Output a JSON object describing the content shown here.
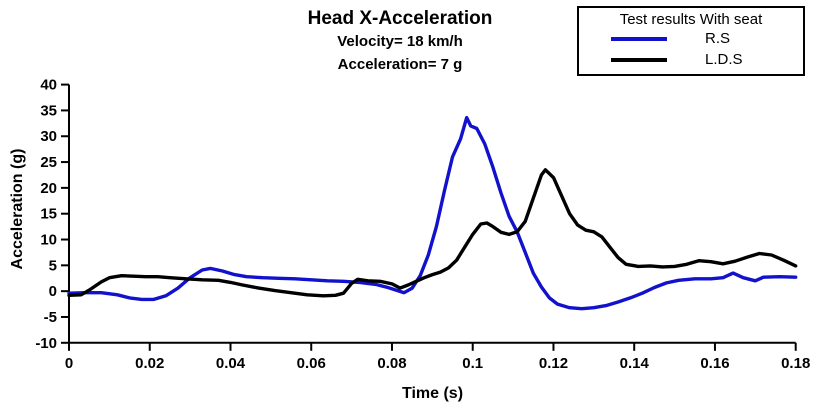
{
  "header": {
    "title": "Head X-Acceleration",
    "subtitle1": "Velocity= 18 km/h",
    "subtitle2": "Acceleration= 7 g"
  },
  "legend": {
    "title": "Test results With seat",
    "items": [
      {
        "label": "R.S",
        "color": "#1212cd"
      },
      {
        "label": "L.D.S",
        "color": "#000000"
      }
    ]
  },
  "chart_data": {
    "type": "line",
    "title": "Head X-Acceleration",
    "subtitles": [
      "Velocity= 18 km/h",
      "Acceleration= 7 g"
    ],
    "xlabel": "Time (s)",
    "ylabel": "Acceleration (g)",
    "xlim": [
      0,
      0.18
    ],
    "ylim": [
      -10,
      40
    ],
    "xticks": [
      0,
      0.02,
      0.04,
      0.06,
      0.08,
      0.1,
      0.12,
      0.14,
      0.16,
      0.18
    ],
    "xtick_labels": [
      "0",
      "0.02",
      "0.04",
      "0.06",
      "0.08",
      "0.1",
      "0.12",
      "0.14",
      "0.16",
      "0.18"
    ],
    "yticks": [
      -10,
      -5,
      0,
      5,
      10,
      15,
      20,
      25,
      30,
      35,
      40
    ],
    "ytick_labels": [
      "-10",
      "-5",
      "0",
      "5",
      "10",
      "15",
      "20",
      "25",
      "30",
      "35",
      "40"
    ],
    "grid": false,
    "legend_position": "top-right",
    "legend_title": "Test results With seat",
    "axis_color": "#000000",
    "line_width": 3.4,
    "series": [
      {
        "name": "R.S",
        "color": "#1212cd",
        "points": [
          [
            0,
            -0.4
          ],
          [
            0.004,
            -0.3
          ],
          [
            0.008,
            -0.3
          ],
          [
            0.012,
            -0.7
          ],
          [
            0.015,
            -1.3
          ],
          [
            0.018,
            -1.6
          ],
          [
            0.021,
            -1.6
          ],
          [
            0.024,
            -0.9
          ],
          [
            0.027,
            0.6
          ],
          [
            0.03,
            2.6
          ],
          [
            0.033,
            4.1
          ],
          [
            0.035,
            4.4
          ],
          [
            0.038,
            3.9
          ],
          [
            0.041,
            3.2
          ],
          [
            0.044,
            2.8
          ],
          [
            0.048,
            2.6
          ],
          [
            0.052,
            2.5
          ],
          [
            0.056,
            2.4
          ],
          [
            0.06,
            2.2
          ],
          [
            0.064,
            2.0
          ],
          [
            0.068,
            1.9
          ],
          [
            0.072,
            1.7
          ],
          [
            0.076,
            1.3
          ],
          [
            0.079,
            0.7
          ],
          [
            0.081,
            0.2
          ],
          [
            0.083,
            -0.3
          ],
          [
            0.085,
            0.6
          ],
          [
            0.087,
            3.0
          ],
          [
            0.089,
            7.0
          ],
          [
            0.091,
            12.5
          ],
          [
            0.093,
            19.5
          ],
          [
            0.095,
            26.0
          ],
          [
            0.097,
            29.5
          ],
          [
            0.0985,
            33.6
          ],
          [
            0.0995,
            32.0
          ],
          [
            0.101,
            31.5
          ],
          [
            0.103,
            28.5
          ],
          [
            0.105,
            24.0
          ],
          [
            0.107,
            19.0
          ],
          [
            0.109,
            14.5
          ],
          [
            0.111,
            11.5
          ],
          [
            0.113,
            7.5
          ],
          [
            0.115,
            3.5
          ],
          [
            0.117,
            0.8
          ],
          [
            0.119,
            -1.3
          ],
          [
            0.121,
            -2.5
          ],
          [
            0.124,
            -3.2
          ],
          [
            0.127,
            -3.4
          ],
          [
            0.13,
            -3.2
          ],
          [
            0.133,
            -2.8
          ],
          [
            0.136,
            -2.1
          ],
          [
            0.139,
            -1.3
          ],
          [
            0.142,
            -0.4
          ],
          [
            0.145,
            0.7
          ],
          [
            0.148,
            1.6
          ],
          [
            0.151,
            2.1
          ],
          [
            0.155,
            2.4
          ],
          [
            0.159,
            2.4
          ],
          [
            0.162,
            2.6
          ],
          [
            0.1645,
            3.5
          ],
          [
            0.167,
            2.6
          ],
          [
            0.17,
            2.0
          ],
          [
            0.172,
            2.7
          ],
          [
            0.176,
            2.8
          ],
          [
            0.18,
            2.7
          ]
        ]
      },
      {
        "name": "L.D.S",
        "color": "#000000",
        "points": [
          [
            0,
            -0.8
          ],
          [
            0.003,
            -0.7
          ],
          [
            0.005,
            0.2
          ],
          [
            0.008,
            1.8
          ],
          [
            0.01,
            2.6
          ],
          [
            0.013,
            3.0
          ],
          [
            0.016,
            2.9
          ],
          [
            0.019,
            2.8
          ],
          [
            0.022,
            2.8
          ],
          [
            0.025,
            2.6
          ],
          [
            0.029,
            2.4
          ],
          [
            0.033,
            2.2
          ],
          [
            0.037,
            2.1
          ],
          [
            0.04,
            1.7
          ],
          [
            0.043,
            1.2
          ],
          [
            0.047,
            0.6
          ],
          [
            0.051,
            0.1
          ],
          [
            0.055,
            -0.3
          ],
          [
            0.059,
            -0.7
          ],
          [
            0.063,
            -0.9
          ],
          [
            0.066,
            -0.8
          ],
          [
            0.068,
            -0.4
          ],
          [
            0.07,
            1.5
          ],
          [
            0.0715,
            2.3
          ],
          [
            0.074,
            2.0
          ],
          [
            0.077,
            1.9
          ],
          [
            0.08,
            1.4
          ],
          [
            0.082,
            0.6
          ],
          [
            0.084,
            1.2
          ],
          [
            0.086,
            1.9
          ],
          [
            0.088,
            2.6
          ],
          [
            0.09,
            3.2
          ],
          [
            0.092,
            3.7
          ],
          [
            0.094,
            4.5
          ],
          [
            0.096,
            6.0
          ],
          [
            0.098,
            8.5
          ],
          [
            0.1,
            11.0
          ],
          [
            0.102,
            13.0
          ],
          [
            0.1035,
            13.2
          ],
          [
            0.105,
            12.5
          ],
          [
            0.107,
            11.4
          ],
          [
            0.109,
            11.0
          ],
          [
            0.111,
            11.5
          ],
          [
            0.113,
            13.5
          ],
          [
            0.115,
            18.0
          ],
          [
            0.117,
            22.5
          ],
          [
            0.118,
            23.5
          ],
          [
            0.12,
            22.0
          ],
          [
            0.122,
            18.5
          ],
          [
            0.124,
            15.0
          ],
          [
            0.126,
            12.8
          ],
          [
            0.128,
            11.8
          ],
          [
            0.13,
            11.5
          ],
          [
            0.132,
            10.5
          ],
          [
            0.134,
            8.5
          ],
          [
            0.136,
            6.5
          ],
          [
            0.138,
            5.2
          ],
          [
            0.141,
            4.8
          ],
          [
            0.144,
            4.9
          ],
          [
            0.147,
            4.7
          ],
          [
            0.15,
            4.8
          ],
          [
            0.153,
            5.2
          ],
          [
            0.156,
            5.9
          ],
          [
            0.159,
            5.7
          ],
          [
            0.162,
            5.3
          ],
          [
            0.165,
            5.8
          ],
          [
            0.168,
            6.6
          ],
          [
            0.171,
            7.3
          ],
          [
            0.174,
            7.0
          ],
          [
            0.177,
            6.0
          ],
          [
            0.18,
            4.9
          ]
        ]
      }
    ]
  }
}
